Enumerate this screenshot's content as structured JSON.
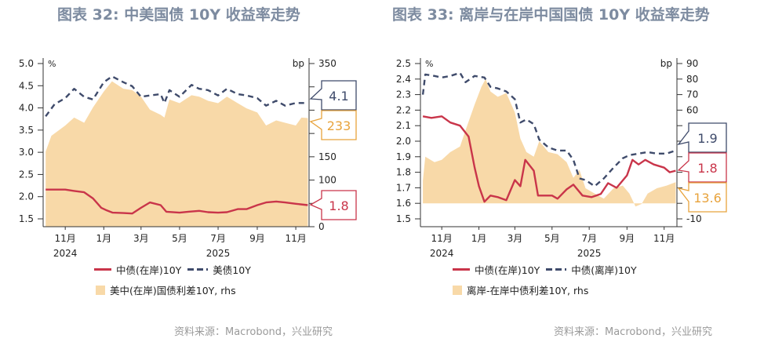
{
  "source": "资料来源：Macrobond，兴业研究",
  "colors": {
    "title": "#7d8ba0",
    "cn_onshore": "#c9354a",
    "us_or_offshore": "#3f4b6b",
    "spread_fill": "#f8d9a8",
    "spread_label": "#e8a33c"
  },
  "chart_data": [
    {
      "type": "line",
      "title": "图表 32: 中美国债 10Y 收益率走势",
      "left_unit": "%",
      "right_unit": "bp",
      "ylim_left": [
        1.32,
        5.0
      ],
      "ylim_right": [
        0,
        350
      ],
      "left_ticks": [
        "5.0",
        "4.5",
        "4.0",
        "3.5",
        "3.0",
        "2.5",
        "2.0",
        "1.5"
      ],
      "right_ticks": [
        0,
        50,
        100,
        150,
        200,
        250,
        300,
        350
      ],
      "right_tick_labels": [
        "350",
        "150",
        "100",
        "0"
      ],
      "x_ticks": [
        "11月",
        "1月",
        "3月",
        "5月",
        "7月",
        "9月",
        "11月"
      ],
      "x_tick_dates": [
        "2024-11-01",
        "2025-01-01",
        "2025-03-01",
        "2025-05-01",
        "2025-07-01",
        "2025-09-01",
        "2025-11-01"
      ],
      "years": [
        "2024",
        "2025"
      ],
      "legend": [
        "中债(在岸)10Y",
        "美债10Y",
        "美中(在岸)国债利差10Y, rhs"
      ],
      "callouts": {
        "us": "4.1",
        "spread": "233",
        "cn": "1.8"
      },
      "series": [
        {
          "name": "中债(在岸)10Y",
          "axis": "left",
          "style": "line",
          "points": [
            [
              "2024-10-01",
              2.16
            ],
            [
              "2024-10-15",
              2.16
            ],
            [
              "2024-11-01",
              2.16
            ],
            [
              "2024-11-15",
              2.13
            ],
            [
              "2024-12-01",
              2.1
            ],
            [
              "2024-12-15",
              1.96
            ],
            [
              "2024-12-28",
              1.75
            ],
            [
              "2025-01-06",
              1.69
            ],
            [
              "2025-01-15",
              1.64
            ],
            [
              "2025-02-01",
              1.63
            ],
            [
              "2025-02-15",
              1.62
            ],
            [
              "2025-03-01",
              1.75
            ],
            [
              "2025-03-15",
              1.87
            ],
            [
              "2025-04-01",
              1.81
            ],
            [
              "2025-04-10",
              1.66
            ],
            [
              "2025-05-01",
              1.64
            ],
            [
              "2025-05-15",
              1.66
            ],
            [
              "2025-06-01",
              1.68
            ],
            [
              "2025-06-15",
              1.65
            ],
            [
              "2025-07-01",
              1.64
            ],
            [
              "2025-07-15",
              1.65
            ],
            [
              "2025-08-01",
              1.72
            ],
            [
              "2025-08-15",
              1.72
            ],
            [
              "2025-09-01",
              1.81
            ],
            [
              "2025-09-15",
              1.87
            ],
            [
              "2025-10-01",
              1.89
            ],
            [
              "2025-10-15",
              1.87
            ],
            [
              "2025-11-01",
              1.84
            ],
            [
              "2025-11-20",
              1.81
            ]
          ]
        },
        {
          "name": "美债10Y",
          "axis": "left",
          "style": "dash",
          "points": [
            [
              "2024-10-01",
              3.81
            ],
            [
              "2024-10-15",
              4.08
            ],
            [
              "2024-11-01",
              4.22
            ],
            [
              "2024-11-15",
              4.43
            ],
            [
              "2024-12-01",
              4.25
            ],
            [
              "2024-12-15",
              4.19
            ],
            [
              "2025-01-01",
              4.58
            ],
            [
              "2025-01-14",
              4.71
            ],
            [
              "2025-02-01",
              4.58
            ],
            [
              "2025-02-15",
              4.49
            ],
            [
              "2025-03-01",
              4.25
            ],
            [
              "2025-03-15",
              4.28
            ],
            [
              "2025-04-01",
              4.31
            ],
            [
              "2025-04-07",
              4.11
            ],
            [
              "2025-04-15",
              4.4
            ],
            [
              "2025-05-01",
              4.25
            ],
            [
              "2025-05-20",
              4.52
            ],
            [
              "2025-06-01",
              4.43
            ],
            [
              "2025-06-15",
              4.4
            ],
            [
              "2025-07-01",
              4.28
            ],
            [
              "2025-07-15",
              4.43
            ],
            [
              "2025-08-01",
              4.31
            ],
            [
              "2025-08-15",
              4.28
            ],
            [
              "2025-09-01",
              4.22
            ],
            [
              "2025-09-15",
              4.05
            ],
            [
              "2025-10-01",
              4.16
            ],
            [
              "2025-10-15",
              4.05
            ],
            [
              "2025-11-01",
              4.11
            ],
            [
              "2025-11-20",
              4.11
            ]
          ]
        },
        {
          "name": "美中(在岸)国债利差10Y, rhs",
          "axis": "right",
          "style": "area",
          "points": [
            [
              "2024-10-01",
              161
            ],
            [
              "2024-10-10",
              195
            ],
            [
              "2024-11-01",
              217
            ],
            [
              "2024-11-15",
              234
            ],
            [
              "2024-12-01",
              223
            ],
            [
              "2024-12-15",
              256
            ],
            [
              "2025-01-01",
              290
            ],
            [
              "2025-01-14",
              312
            ],
            [
              "2025-02-01",
              296
            ],
            [
              "2025-02-15",
              293
            ],
            [
              "2025-03-01",
              279
            ],
            [
              "2025-03-15",
              251
            ],
            [
              "2025-04-01",
              240
            ],
            [
              "2025-04-07",
              234
            ],
            [
              "2025-04-15",
              273
            ],
            [
              "2025-05-01",
              265
            ],
            [
              "2025-05-20",
              282
            ],
            [
              "2025-06-01",
              279
            ],
            [
              "2025-06-15",
              270
            ],
            [
              "2025-07-01",
              265
            ],
            [
              "2025-07-15",
              279
            ],
            [
              "2025-08-01",
              265
            ],
            [
              "2025-08-15",
              254
            ],
            [
              "2025-09-01",
              245
            ],
            [
              "2025-09-15",
              217
            ],
            [
              "2025-10-01",
              228
            ],
            [
              "2025-10-15",
              223
            ],
            [
              "2025-11-01",
              217
            ],
            [
              "2025-11-10",
              234
            ],
            [
              "2025-11-20",
              233
            ]
          ]
        }
      ]
    },
    {
      "type": "line",
      "title": "图表 33: 离岸与在岸中国国债 10Y 收益率走势",
      "left_unit": "%",
      "right_unit": "bp",
      "ylim_left": [
        1.45,
        2.5
      ],
      "ylim_right": [
        -15,
        90
      ],
      "left_ticks": [
        "2.5",
        "2.4",
        "2.3",
        "2.2",
        "2.1",
        "2.0",
        "1.9",
        "1.8",
        "1.7",
        "1.6",
        "1.5"
      ],
      "right_ticks": [
        -10,
        0,
        10,
        20,
        30,
        40,
        50,
        60,
        70,
        80,
        90
      ],
      "right_tick_labels": [
        "90",
        "80",
        "70",
        "60",
        "-10"
      ],
      "x_ticks": [
        "11月",
        "1月",
        "3月",
        "5月",
        "7月",
        "9月",
        "11月"
      ],
      "x_tick_dates": [
        "2024-11-01",
        "2025-01-01",
        "2025-03-01",
        "2025-05-01",
        "2025-07-01",
        "2025-09-01",
        "2025-11-01"
      ],
      "years": [
        "2024",
        "2025"
      ],
      "legend": [
        "中债(在岸)10Y",
        "中债(离岸)10Y",
        "离岸-在岸中债利差10Y, rhs"
      ],
      "callouts": {
        "offshore": "1.9",
        "cn": "1.8",
        "spread": "13.6"
      },
      "series": [
        {
          "name": "中债(在岸)10Y",
          "axis": "left",
          "style": "line",
          "points": [
            [
              "2024-10-01",
              2.16
            ],
            [
              "2024-10-15",
              2.15
            ],
            [
              "2024-11-01",
              2.16
            ],
            [
              "2024-11-15",
              2.12
            ],
            [
              "2024-12-01",
              2.1
            ],
            [
              "2024-12-15",
              2.03
            ],
            [
              "2024-12-25",
              1.83
            ],
            [
              "2025-01-01",
              1.71
            ],
            [
              "2025-01-10",
              1.61
            ],
            [
              "2025-01-20",
              1.65
            ],
            [
              "2025-02-01",
              1.64
            ],
            [
              "2025-02-15",
              1.62
            ],
            [
              "2025-03-01",
              1.75
            ],
            [
              "2025-03-10",
              1.71
            ],
            [
              "2025-03-18",
              1.88
            ],
            [
              "2025-04-01",
              1.81
            ],
            [
              "2025-04-08",
              1.65
            ],
            [
              "2025-05-01",
              1.65
            ],
            [
              "2025-05-10",
              1.63
            ],
            [
              "2025-05-25",
              1.69
            ],
            [
              "2025-06-05",
              1.72
            ],
            [
              "2025-06-20",
              1.65
            ],
            [
              "2025-07-05",
              1.64
            ],
            [
              "2025-07-20",
              1.66
            ],
            [
              "2025-08-01",
              1.73
            ],
            [
              "2025-08-15",
              1.7
            ],
            [
              "2025-09-01",
              1.78
            ],
            [
              "2025-09-10",
              1.88
            ],
            [
              "2025-09-20",
              1.85
            ],
            [
              "2025-10-01",
              1.88
            ],
            [
              "2025-10-15",
              1.85
            ],
            [
              "2025-11-01",
              1.83
            ],
            [
              "2025-11-10",
              1.8
            ],
            [
              "2025-11-20",
              1.81
            ]
          ]
        },
        {
          "name": "中债(离岸)10Y",
          "axis": "left",
          "style": "dash",
          "points": [
            [
              "2024-10-01",
              2.3
            ],
            [
              "2024-10-05",
              2.43
            ],
            [
              "2024-10-20",
              2.42
            ],
            [
              "2024-11-01",
              2.41
            ],
            [
              "2024-11-15",
              2.42
            ],
            [
              "2024-12-01",
              2.44
            ],
            [
              "2024-12-10",
              2.38
            ],
            [
              "2024-12-25",
              2.42
            ],
            [
              "2025-01-10",
              2.41
            ],
            [
              "2025-01-20",
              2.35
            ],
            [
              "2025-02-01",
              2.34
            ],
            [
              "2025-02-15",
              2.32
            ],
            [
              "2025-03-01",
              2.27
            ],
            [
              "2025-03-10",
              2.12
            ],
            [
              "2025-03-20",
              2.14
            ],
            [
              "2025-04-01",
              2.11
            ],
            [
              "2025-04-10",
              2.01
            ],
            [
              "2025-04-25",
              1.96
            ],
            [
              "2025-05-10",
              1.94
            ],
            [
              "2025-05-25",
              1.94
            ],
            [
              "2025-06-05",
              1.88
            ],
            [
              "2025-06-15",
              1.76
            ],
            [
              "2025-06-25",
              1.75
            ],
            [
              "2025-07-10",
              1.71
            ],
            [
              "2025-07-25",
              1.76
            ],
            [
              "2025-08-10",
              1.83
            ],
            [
              "2025-08-25",
              1.89
            ],
            [
              "2025-09-05",
              1.91
            ],
            [
              "2025-09-20",
              1.92
            ],
            [
              "2025-10-05",
              1.93
            ],
            [
              "2025-10-20",
              1.92
            ],
            [
              "2025-11-05",
              1.92
            ],
            [
              "2025-11-20",
              1.94
            ]
          ]
        },
        {
          "name": "离岸-在岸中债利差10Y, rhs",
          "axis": "right",
          "style": "area",
          "points": [
            [
              "2024-10-01",
              14.7
            ],
            [
              "2024-10-05",
              30
            ],
            [
              "2024-10-20",
              26.5
            ],
            [
              "2024-11-01",
              28
            ],
            [
              "2024-11-15",
              33
            ],
            [
              "2024-12-01",
              36.6
            ],
            [
              "2024-12-10",
              47
            ],
            [
              "2024-12-25",
              63.6
            ],
            [
              "2025-01-05",
              75
            ],
            [
              "2025-01-12",
              80
            ],
            [
              "2025-01-20",
              72
            ],
            [
              "2025-02-01",
              68.6
            ],
            [
              "2025-02-15",
              71
            ],
            [
              "2025-03-01",
              58.5
            ],
            [
              "2025-03-10",
              41.7
            ],
            [
              "2025-03-20",
              33
            ],
            [
              "2025-04-01",
              30
            ],
            [
              "2025-04-10",
              40
            ],
            [
              "2025-04-25",
              33
            ],
            [
              "2025-05-10",
              31.6
            ],
            [
              "2025-05-25",
              26.5
            ],
            [
              "2025-06-05",
              16.4
            ],
            [
              "2025-06-15",
              21.5
            ],
            [
              "2025-06-25",
              9.7
            ],
            [
              "2025-07-10",
              6.3
            ],
            [
              "2025-07-25",
              3
            ],
            [
              "2025-08-10",
              9.7
            ],
            [
              "2025-08-25",
              11.4
            ],
            [
              "2025-09-05",
              6.3
            ],
            [
              "2025-09-15",
              -2
            ],
            [
              "2025-09-25",
              -0.4
            ],
            [
              "2025-10-05",
              6.3
            ],
            [
              "2025-10-20",
              9.7
            ],
            [
              "2025-11-05",
              11.4
            ],
            [
              "2025-11-20",
              13.6
            ]
          ]
        }
      ]
    }
  ]
}
